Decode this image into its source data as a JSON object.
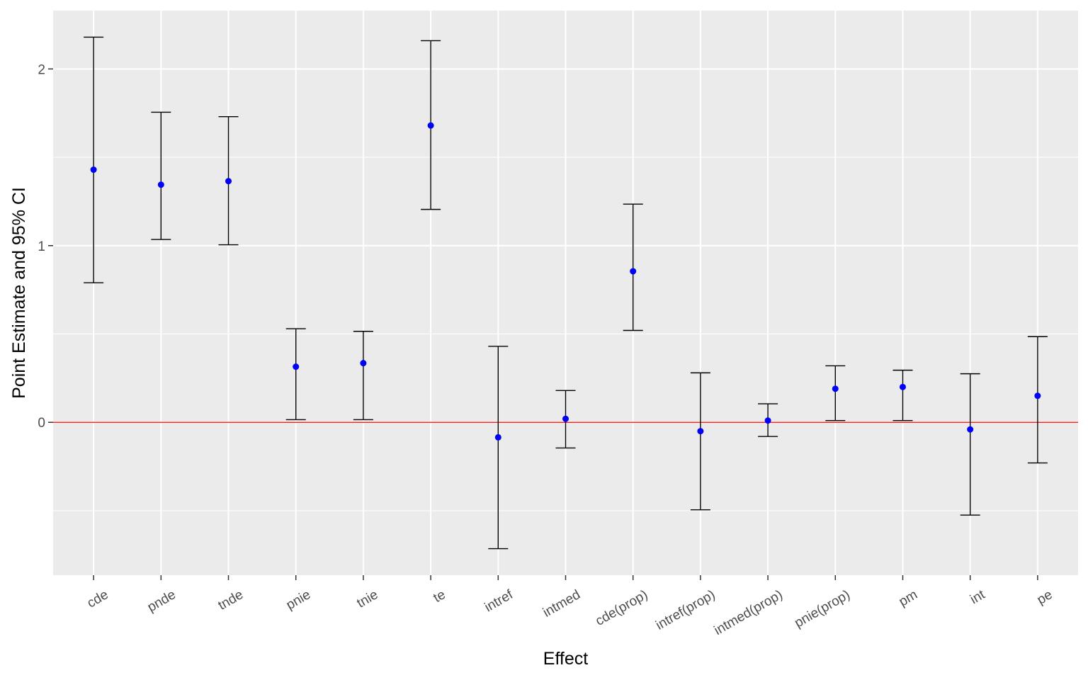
{
  "chart_data": {
    "type": "errorbar",
    "xlabel": "Effect",
    "ylabel": "Point Estimate and 95% CI",
    "categories": [
      "cde",
      "pnde",
      "tnde",
      "pnie",
      "tnie",
      "te",
      "intref",
      "intmed",
      "cde(prop)",
      "intref(prop)",
      "intmed(prop)",
      "pnie(prop)",
      "pm",
      "int",
      "pe"
    ],
    "estimate": [
      1.43,
      1.345,
      1.365,
      0.315,
      0.335,
      1.68,
      -0.085,
      0.02,
      0.855,
      -0.05,
      0.01,
      0.19,
      0.2,
      -0.04,
      0.15
    ],
    "lower": [
      0.79,
      1.035,
      1.005,
      0.015,
      0.015,
      1.205,
      -0.715,
      -0.145,
      0.52,
      -0.495,
      -0.08,
      0.01,
      0.01,
      -0.525,
      -0.23
    ],
    "upper": [
      2.18,
      1.755,
      1.73,
      0.53,
      0.515,
      2.16,
      0.43,
      0.18,
      1.235,
      0.28,
      0.105,
      0.32,
      0.295,
      0.275,
      0.485
    ],
    "ylim": [
      -0.865,
      2.33
    ],
    "y_ticks": [
      0,
      1,
      2
    ],
    "reference_line": {
      "y": 0,
      "color": "#ff0000"
    },
    "point_color": "#0000ff",
    "errorbar_color": "#000000",
    "panel_background": "#ebebeb",
    "grid": true,
    "legend": "none"
  }
}
